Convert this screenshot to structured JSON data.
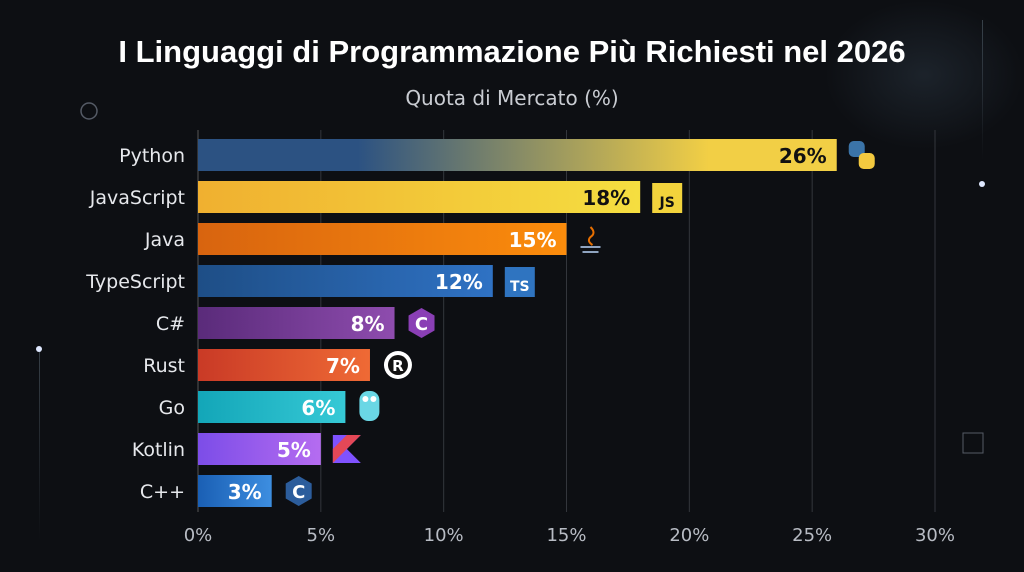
{
  "chart_data": {
    "type": "bar",
    "orientation": "horizontal",
    "title": "I Linguaggi di Programmazione Più Richiesti nel 2026",
    "subtitle": "Quota di Mercato (%)",
    "categories": [
      "Python",
      "JavaScript",
      "Java",
      "TypeScript",
      "C#",
      "Rust",
      "Go",
      "Kotlin",
      "C++"
    ],
    "values": [
      26,
      18,
      15,
      12,
      8,
      7,
      6,
      5,
      3
    ],
    "data_labels": [
      "26%",
      "18%",
      "15%",
      "12%",
      "8%",
      "7%",
      "6%",
      "5%",
      "3%"
    ],
    "icons": [
      "python-logo",
      "javascript-logo",
      "java-logo",
      "typescript-logo",
      "csharp-logo",
      "rust-logo",
      "go-gopher-logo",
      "kotlin-logo",
      "cpp-logo"
    ],
    "colors": [
      [
        "#2c5282",
        "#f2cf45"
      ],
      [
        "#f0b030",
        "#f5de40"
      ],
      [
        "#d8640f",
        "#fb8c0c"
      ],
      [
        "#1e4e86",
        "#2f72c4"
      ],
      [
        "#5a2b7a",
        "#8e4cae"
      ],
      [
        "#c93a26",
        "#ef6a35"
      ],
      [
        "#13a6b8",
        "#36c9d6"
      ],
      [
        "#7c4de8",
        "#b56cf0"
      ],
      [
        "#1a5fb4",
        "#3d8ee0"
      ]
    ],
    "label_colors": [
      "#111111",
      "#111111",
      "#ffffff",
      "#ffffff",
      "#ffffff",
      "#ffffff",
      "#ffffff",
      "#ffffff",
      "#ffffff"
    ],
    "xlim": [
      0,
      30
    ],
    "xticks": [
      "0%",
      "5%",
      "10%",
      "15%",
      "20%",
      "25%",
      "30%"
    ],
    "grid": true,
    "xlabel": "",
    "ylabel": ""
  }
}
